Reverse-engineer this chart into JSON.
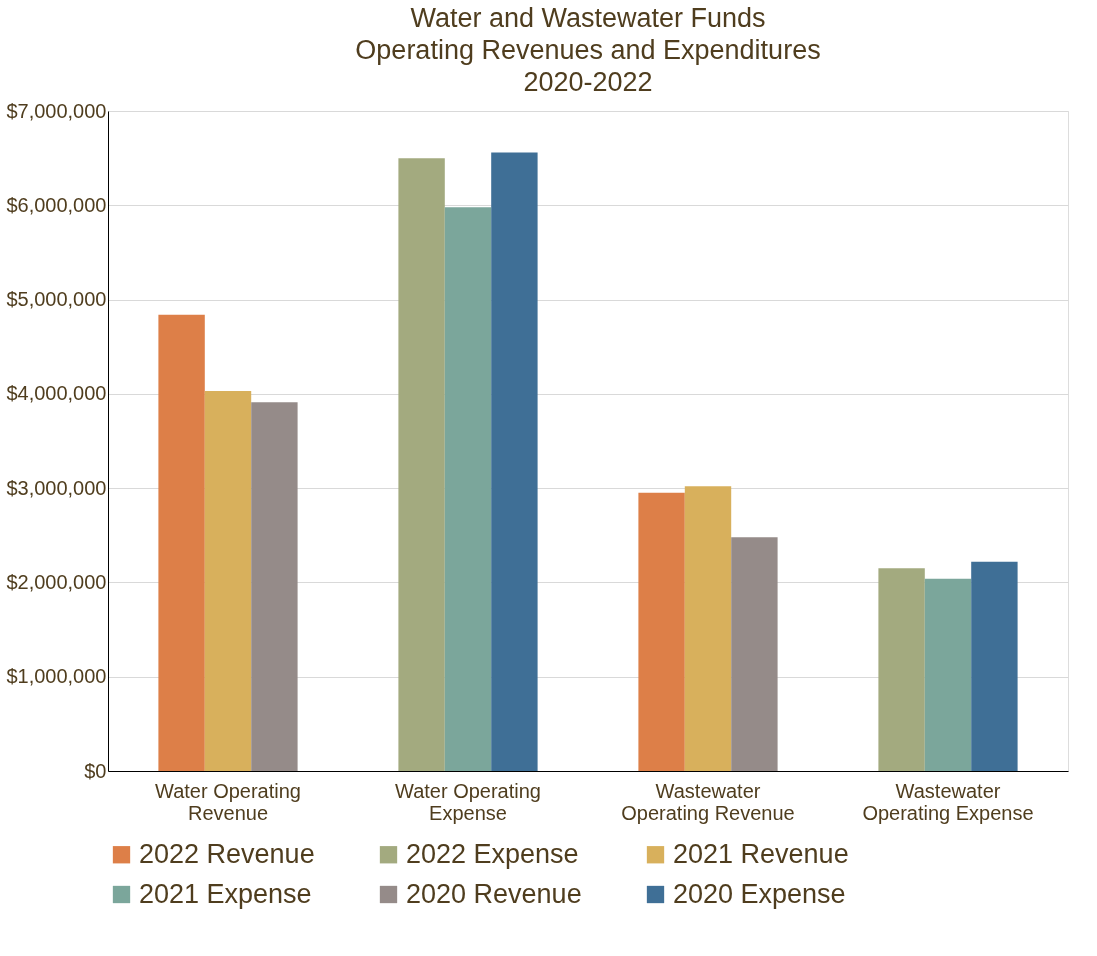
{
  "chart_data": {
    "type": "bar",
    "title": "Water and Wastewater Funds\nOperating Revenues and Expenditures\n2020-2022",
    "categories": [
      "Water Operating Revenue",
      "Water Operating Expense",
      "Wastewater Operating Revenue",
      "Wastewater Operating Expense"
    ],
    "series": [
      {
        "name": "2022 Revenue",
        "color": "#dd7f48",
        "values": [
          4840000,
          null,
          2950000,
          null
        ]
      },
      {
        "name": "2022 Expense",
        "color": "#a3aa7f",
        "values": [
          null,
          6500000,
          null,
          2150000
        ]
      },
      {
        "name": "2021 Revenue",
        "color": "#d8b05c",
        "values": [
          4030000,
          null,
          3020000,
          null
        ]
      },
      {
        "name": "2021 Expense",
        "color": "#7ba69b",
        "values": [
          null,
          5980000,
          null,
          2040000
        ]
      },
      {
        "name": "2020 Revenue",
        "color": "#958b89",
        "values": [
          3910000,
          null,
          2480000,
          null
        ]
      },
      {
        "name": "2020 Expense",
        "color": "#3f6f96",
        "values": [
          null,
          6560000,
          null,
          2220000
        ]
      }
    ],
    "ylim": [
      0,
      7000000
    ],
    "yticks": [
      {
        "value": 0,
        "label": "$0"
      },
      {
        "value": 1000000,
        "label": "$1,000,000"
      },
      {
        "value": 2000000,
        "label": "$2,000,000"
      },
      {
        "value": 3000000,
        "label": "$3,000,000"
      },
      {
        "value": 4000000,
        "label": "$4,000,000"
      },
      {
        "value": 5000000,
        "label": "$5,000,000"
      },
      {
        "value": 6000000,
        "label": "$6,000,000"
      },
      {
        "value": 7000000,
        "label": "$7,000,000"
      }
    ],
    "grid": "y",
    "legend": "bottom"
  }
}
